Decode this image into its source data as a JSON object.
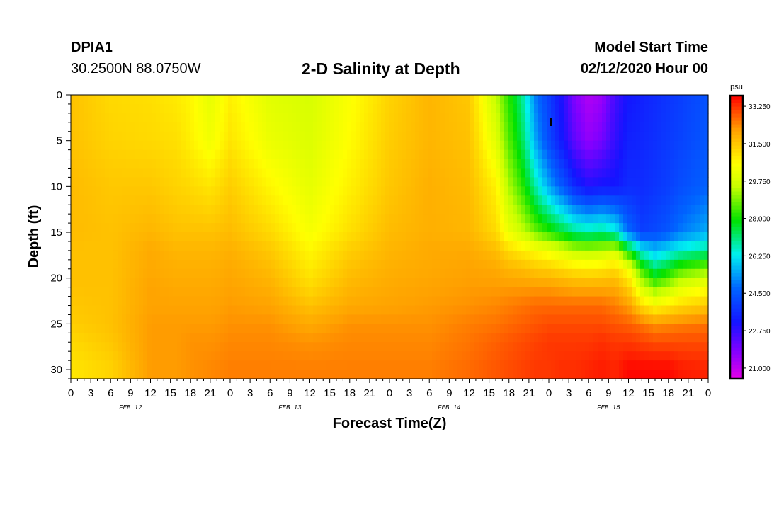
{
  "header": {
    "station": "DPIA1",
    "coordinates": "30.2500N 88.0750W",
    "title": "2-D Salinity at Depth",
    "start_label": "Model Start Time",
    "start_value": "02/12/2020 Hour 00"
  },
  "chart_data": {
    "type": "heatmap",
    "title": "2-D Salinity at Depth",
    "xlabel": "Forecast Time(Z)",
    "ylabel": "Depth (ft)",
    "x_tick_labels": [
      "0",
      "3",
      "6",
      "9",
      "12",
      "15",
      "18",
      "21",
      "0",
      "3",
      "6",
      "9",
      "12",
      "15",
      "18",
      "21",
      "0",
      "3",
      "6",
      "9",
      "12",
      "15",
      "18",
      "21",
      "0",
      "3",
      "6",
      "9",
      "12",
      "15",
      "18",
      "21",
      "0"
    ],
    "x_range_hours": [
      0,
      96
    ],
    "day_labels": [
      {
        "hour": 9,
        "label": "FEB 12"
      },
      {
        "hour": 33,
        "label": "FEB 13"
      },
      {
        "hour": 57,
        "label": "FEB 14"
      },
      {
        "hour": 81,
        "label": "FEB 15"
      }
    ],
    "y_ticks": [
      0,
      5,
      10,
      15,
      20,
      25,
      30
    ],
    "y_range": [
      0,
      31
    ],
    "y_inverted": true,
    "colorbar": {
      "unit": "psu",
      "range": [
        20.5,
        33.75
      ],
      "ticks": [
        "33.250",
        "31.500",
        "29.750",
        "28.000",
        "26.250",
        "24.500",
        "22.750",
        "21.000"
      ]
    },
    "depth_levels_ft": [
      0,
      5,
      10,
      15,
      17,
      19,
      21,
      23,
      25,
      27,
      30,
      31
    ],
    "hours": [
      0,
      6,
      12,
      16,
      18,
      21,
      24,
      30,
      36,
      42,
      48,
      54,
      60,
      64,
      66,
      68,
      70,
      72,
      74,
      76,
      78,
      80,
      82,
      84,
      86,
      88,
      90,
      92,
      96
    ],
    "salinity_psu": [
      [
        31.6,
        31.6,
        31.7,
        31.7,
        31.6,
        31.6,
        31.6,
        31.5,
        31.4,
        31.2,
        31.0,
        30.9
      ],
      [
        31.2,
        31.3,
        31.5,
        31.6,
        31.6,
        31.6,
        31.6,
        31.6,
        31.6,
        31.5,
        31.3,
        31.3
      ],
      [
        31.1,
        31.2,
        31.5,
        31.8,
        32.0,
        32.0,
        32.1,
        32.1,
        32.2,
        32.2,
        32.2,
        32.2
      ],
      [
        30.9,
        31.1,
        31.3,
        31.6,
        31.8,
        31.9,
        32.0,
        32.1,
        32.2,
        32.2,
        32.2,
        32.2
      ],
      [
        30.7,
        30.8,
        31.2,
        31.6,
        31.8,
        31.9,
        32.0,
        32.1,
        32.2,
        32.3,
        32.3,
        32.3
      ],
      [
        30.1,
        30.3,
        31.0,
        31.6,
        31.8,
        31.9,
        32.0,
        32.1,
        32.2,
        32.3,
        32.4,
        32.4
      ],
      [
        30.8,
        31.0,
        31.4,
        31.7,
        31.9,
        32.0,
        32.1,
        32.2,
        32.3,
        32.4,
        32.5,
        32.5
      ],
      [
        30.0,
        30.2,
        30.7,
        31.2,
        31.5,
        31.7,
        31.9,
        32.1,
        32.3,
        32.4,
        32.5,
        32.5
      ],
      [
        29.8,
        29.9,
        30.1,
        30.4,
        30.7,
        30.9,
        31.2,
        31.6,
        32.0,
        32.3,
        32.5,
        32.5
      ],
      [
        30.5,
        30.6,
        30.8,
        31.1,
        31.4,
        31.6,
        31.8,
        32.0,
        32.3,
        32.4,
        32.5,
        32.5
      ],
      [
        31.3,
        31.4,
        31.5,
        31.7,
        31.8,
        31.9,
        32.0,
        32.1,
        32.3,
        32.4,
        32.5,
        32.5
      ],
      [
        31.8,
        31.8,
        31.9,
        31.9,
        32.0,
        32.0,
        32.1,
        32.2,
        32.3,
        32.4,
        32.5,
        32.5
      ],
      [
        31.5,
        31.6,
        31.7,
        31.8,
        32.0,
        32.1,
        32.2,
        32.3,
        32.5,
        32.6,
        32.7,
        32.7
      ],
      [
        29.5,
        30.0,
        30.8,
        31.2,
        31.7,
        32.0,
        32.2,
        32.4,
        32.6,
        32.8,
        32.9,
        32.9
      ],
      [
        28.2,
        28.6,
        29.3,
        30.2,
        31.2,
        31.8,
        32.2,
        32.5,
        32.7,
        32.9,
        33.0,
        33.0
      ],
      [
        27.0,
        27.4,
        28.3,
        29.6,
        30.9,
        31.7,
        32.2,
        32.6,
        32.8,
        33.0,
        33.1,
        33.1
      ],
      [
        25.0,
        25.5,
        26.8,
        28.8,
        30.6,
        31.5,
        32.2,
        32.7,
        32.9,
        33.1,
        33.2,
        33.2
      ],
      [
        24.0,
        24.2,
        25.5,
        28.2,
        30.3,
        31.4,
        32.2,
        32.7,
        33.0,
        33.2,
        33.2,
        33.2
      ],
      [
        23.0,
        23.2,
        24.5,
        27.6,
        29.9,
        31.2,
        32.1,
        32.7,
        33.0,
        33.2,
        33.3,
        33.3
      ],
      [
        21.8,
        22.2,
        23.5,
        27.0,
        29.5,
        31.0,
        32.0,
        32.7,
        33.0,
        33.2,
        33.3,
        33.3
      ],
      [
        21.2,
        21.6,
        23.0,
        26.8,
        29.4,
        30.9,
        32.0,
        32.7,
        33.0,
        33.2,
        33.4,
        33.4
      ],
      [
        21.5,
        22.0,
        23.2,
        27.0,
        29.5,
        31.0,
        32.0,
        32.7,
        33.0,
        33.3,
        33.5,
        33.5
      ],
      [
        22.6,
        22.8,
        23.2,
        26.5,
        29.8,
        31.2,
        32.0,
        32.5,
        32.9,
        33.2,
        33.4,
        33.4
      ],
      [
        23.2,
        23.4,
        23.6,
        24.8,
        28.0,
        30.4,
        31.4,
        32.2,
        32.8,
        33.2,
        33.7,
        33.7
      ],
      [
        23.4,
        23.5,
        23.6,
        24.0,
        26.4,
        28.4,
        29.8,
        31.2,
        32.6,
        33.1,
        33.7,
        33.7
      ],
      [
        23.6,
        23.7,
        23.8,
        24.2,
        25.8,
        27.2,
        28.9,
        30.6,
        32.3,
        33.0,
        33.7,
        33.7
      ],
      [
        23.8,
        23.9,
        24.0,
        24.5,
        26.2,
        27.8,
        29.4,
        30.9,
        32.4,
        33.0,
        33.7,
        33.7
      ],
      [
        24.0,
        24.1,
        24.3,
        25.0,
        26.6,
        28.5,
        30.0,
        31.2,
        32.5,
        33.0,
        33.5,
        33.5
      ],
      [
        24.4,
        24.5,
        24.7,
        25.6,
        27.0,
        29.0,
        30.5,
        31.5,
        32.6,
        33.0,
        33.4,
        33.4
      ]
    ]
  }
}
